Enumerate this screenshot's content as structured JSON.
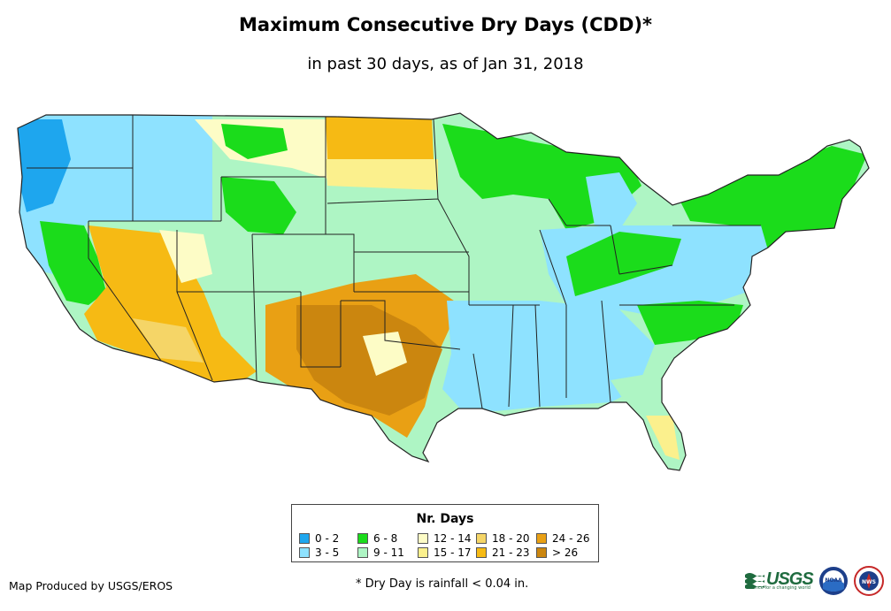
{
  "title": "Maximum Consecutive Dry Days (CDD)*",
  "subtitle": "in past 30 days, as of Jan 31, 2018",
  "legend": {
    "title": "Nr. Days",
    "items": [
      {
        "label": "0 - 2",
        "color": "#1ea6ee"
      },
      {
        "label": "3 - 5",
        "color": "#8ee2ff"
      },
      {
        "label": "6 - 8",
        "color": "#1bdc1b"
      },
      {
        "label": "9 - 11",
        "color": "#aef5c4"
      },
      {
        "label": "12 - 14",
        "color": "#fdfcc6"
      },
      {
        "label": "15 - 17",
        "color": "#fbf08d"
      },
      {
        "label": "18 - 20",
        "color": "#f5d567"
      },
      {
        "label": "21 - 23",
        "color": "#f6ba14"
      },
      {
        "label": "24 - 26",
        "color": "#e9a014"
      },
      {
        "label": "> 26",
        "color": "#cb860f"
      }
    ]
  },
  "credit": "Map Produced by USGS/EROS",
  "footnote": "* Dry Day is rainfall < 0.04 in.",
  "logos": {
    "usgs_text": "USGS",
    "usgs_tagline": "science for a changing world",
    "noaa_text": "NOAA",
    "nws_text": "NWS"
  }
}
